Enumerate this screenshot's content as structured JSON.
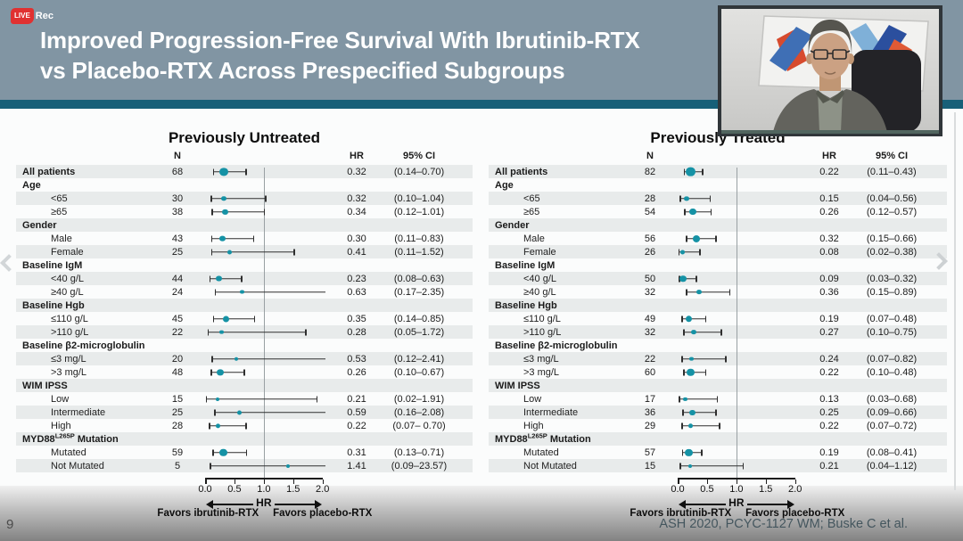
{
  "recording": {
    "live_label": "LIVE",
    "rec_label": "Rec"
  },
  "slide": {
    "title_line1": "Improved Progression-Free Survival With Ibrutinib-RTX",
    "title_line2": "vs Placebo-RTX Across Prespecified Subgroups",
    "page_number": "9",
    "citation": "ASH 2020, PCYC-1127 WM; Buske C et al."
  },
  "nav": {
    "prev_icon": "chevron-left",
    "next_icon": "chevron-right"
  },
  "colors": {
    "header_background": "#8195a3",
    "accent_bar": "#175f78",
    "point_color": "#1592a5",
    "record_red": "#e03131",
    "stripe": "#e8ebeb"
  },
  "chart_data": [
    {
      "type": "scatter",
      "subtype": "forest-plot",
      "title": "Previously Untreated",
      "columns": [
        "N",
        "HR",
        "95% CI"
      ],
      "axis": {
        "xlim": [
          0,
          2.05
        ],
        "ticks": [
          "0.0",
          "0.5",
          "1.0",
          "1.5",
          "2.0"
        ],
        "tick_values": [
          0,
          0.5,
          1,
          1.5,
          2
        ],
        "ref_line": 1.0,
        "label": "HR",
        "left_arrow_label": "Favors ibrutinib-RTX",
        "right_arrow_label": "Favors placebo-RTX"
      },
      "rows": [
        {
          "label": "All patients",
          "bold": true,
          "n": 68,
          "hr": 0.32,
          "ci_low": 0.14,
          "ci_high": 0.7,
          "ci_text": "(0.14–0.70)"
        },
        {
          "label": "Age",
          "section": true
        },
        {
          "label": "<65",
          "n": 30,
          "hr": 0.32,
          "ci_low": 0.1,
          "ci_high": 1.04,
          "ci_text": "(0.10–1.04)"
        },
        {
          "label": "≥65",
          "n": 38,
          "hr": 0.34,
          "ci_low": 0.12,
          "ci_high": 1.01,
          "ci_text": "(0.12–1.01)"
        },
        {
          "label": "Gender",
          "section": true
        },
        {
          "label": "Male",
          "n": 43,
          "hr": 0.3,
          "ci_low": 0.11,
          "ci_high": 0.83,
          "ci_text": "(0.11–0.83)"
        },
        {
          "label": "Female",
          "n": 25,
          "hr": 0.41,
          "ci_low": 0.11,
          "ci_high": 1.52,
          "ci_text": "(0.11–1.52)"
        },
        {
          "label": "Baseline IgM",
          "section": true
        },
        {
          "label": "<40 g/L",
          "n": 44,
          "hr": 0.23,
          "ci_low": 0.08,
          "ci_high": 0.63,
          "ci_text": "(0.08–0.63)"
        },
        {
          "label": "≥40 g/L",
          "n": 24,
          "hr": 0.63,
          "ci_low": 0.17,
          "ci_high": 2.35,
          "ci_text": "(0.17–2.35)"
        },
        {
          "label": "Baseline Hgb",
          "section": true
        },
        {
          "label": "≤110 g/L",
          "n": 45,
          "hr": 0.35,
          "ci_low": 0.14,
          "ci_high": 0.85,
          "ci_text": "(0.14–0.85)"
        },
        {
          "label": ">110 g/L",
          "n": 22,
          "hr": 0.28,
          "ci_low": 0.05,
          "ci_high": 1.72,
          "ci_text": "(0.05–1.72)"
        },
        {
          "label": "Baseline β2-microglobulin",
          "section": true
        },
        {
          "label": "≤3 mg/L",
          "n": 20,
          "hr": 0.53,
          "ci_low": 0.12,
          "ci_high": 2.41,
          "ci_text": "(0.12–2.41)"
        },
        {
          "label": ">3 mg/L",
          "n": 48,
          "hr": 0.26,
          "ci_low": 0.1,
          "ci_high": 0.67,
          "ci_text": "(0.10–0.67)"
        },
        {
          "label": "WIM IPSS",
          "section": true
        },
        {
          "label": "Low",
          "n": 15,
          "hr": 0.21,
          "ci_low": 0.02,
          "ci_high": 1.91,
          "ci_text": "(0.02–1.91)"
        },
        {
          "label": "Intermediate",
          "n": 25,
          "hr": 0.59,
          "ci_low": 0.16,
          "ci_high": 2.08,
          "ci_text": "(0.16–2.08)"
        },
        {
          "label": "High",
          "n": 28,
          "hr": 0.22,
          "ci_low": 0.07,
          "ci_high": 0.7,
          "ci_text": "(0.07– 0.70)"
        },
        {
          "label": "MYD88",
          "sup": "L265P",
          "post": " Mutation",
          "section": true
        },
        {
          "label": "Mutated",
          "n": 59,
          "hr": 0.31,
          "ci_low": 0.13,
          "ci_high": 0.71,
          "ci_text": "(0.13–0.71)"
        },
        {
          "label": "Not Mutated",
          "n": 5,
          "hr": 1.41,
          "ci_low": 0.09,
          "ci_high": 23.57,
          "ci_text": "(0.09–23.57)"
        }
      ]
    },
    {
      "type": "scatter",
      "subtype": "forest-plot",
      "title": "Previously Treated",
      "columns": [
        "N",
        "HR",
        "95% CI"
      ],
      "axis": {
        "xlim": [
          0,
          2.05
        ],
        "ticks": [
          "0.0",
          "0.5",
          "1.0",
          "1.5",
          "2.0"
        ],
        "tick_values": [
          0,
          0.5,
          1,
          1.5,
          2
        ],
        "ref_line": 1.0,
        "label": "HR",
        "left_arrow_label": "Favors ibrutinib-RTX",
        "right_arrow_label": "Favors placebo-RTX"
      },
      "rows": [
        {
          "label": "All patients",
          "bold": true,
          "n": 82,
          "hr": 0.22,
          "ci_low": 0.11,
          "ci_high": 0.43,
          "ci_text": "(0.11–0.43)"
        },
        {
          "label": "Age",
          "section": true
        },
        {
          "label": "<65",
          "n": 28,
          "hr": 0.15,
          "ci_low": 0.04,
          "ci_high": 0.56,
          "ci_text": "(0.04–0.56)"
        },
        {
          "label": "≥65",
          "n": 54,
          "hr": 0.26,
          "ci_low": 0.12,
          "ci_high": 0.57,
          "ci_text": "(0.12–0.57)"
        },
        {
          "label": "Gender",
          "section": true
        },
        {
          "label": "Male",
          "n": 56,
          "hr": 0.32,
          "ci_low": 0.15,
          "ci_high": 0.66,
          "ci_text": "(0.15–0.66)"
        },
        {
          "label": "Female",
          "n": 26,
          "hr": 0.08,
          "ci_low": 0.02,
          "ci_high": 0.38,
          "ci_text": "(0.02–0.38)"
        },
        {
          "label": "Baseline IgM",
          "section": true
        },
        {
          "label": "<40 g/L",
          "n": 50,
          "hr": 0.09,
          "ci_low": 0.03,
          "ci_high": 0.32,
          "ci_text": "(0.03–0.32)"
        },
        {
          "label": "≥40 g/L",
          "n": 32,
          "hr": 0.36,
          "ci_low": 0.15,
          "ci_high": 0.89,
          "ci_text": "(0.15–0.89)"
        },
        {
          "label": "Baseline Hgb",
          "section": true
        },
        {
          "label": "≤110 g/L",
          "n": 49,
          "hr": 0.19,
          "ci_low": 0.07,
          "ci_high": 0.48,
          "ci_text": "(0.07–0.48)"
        },
        {
          "label": ">110 g/L",
          "n": 32,
          "hr": 0.27,
          "ci_low": 0.1,
          "ci_high": 0.75,
          "ci_text": "(0.10–0.75)"
        },
        {
          "label": "Baseline β2-microglobulin",
          "section": true
        },
        {
          "label": "≤3 mg/L",
          "n": 22,
          "hr": 0.24,
          "ci_low": 0.07,
          "ci_high": 0.82,
          "ci_text": "(0.07–0.82)"
        },
        {
          "label": ">3 mg/L",
          "n": 60,
          "hr": 0.22,
          "ci_low": 0.1,
          "ci_high": 0.48,
          "ci_text": "(0.10–0.48)"
        },
        {
          "label": "WIM IPSS",
          "section": true
        },
        {
          "label": "Low",
          "n": 17,
          "hr": 0.13,
          "ci_low": 0.03,
          "ci_high": 0.68,
          "ci_text": "(0.03–0.68)"
        },
        {
          "label": "Intermediate",
          "n": 36,
          "hr": 0.25,
          "ci_low": 0.09,
          "ci_high": 0.66,
          "ci_text": "(0.09–0.66)"
        },
        {
          "label": "High",
          "n": 29,
          "hr": 0.22,
          "ci_low": 0.07,
          "ci_high": 0.72,
          "ci_text": "(0.07–0.72)"
        },
        {
          "label": "MYD88",
          "sup": "L265P",
          "post": " Mutation",
          "section": true
        },
        {
          "label": "Mutated",
          "n": 57,
          "hr": 0.19,
          "ci_low": 0.08,
          "ci_high": 0.41,
          "ci_text": "(0.08–0.41)"
        },
        {
          "label": "Not Mutated",
          "n": 15,
          "hr": 0.21,
          "ci_low": 0.04,
          "ci_high": 1.12,
          "ci_text": "(0.04–1.12)"
        }
      ]
    }
  ]
}
